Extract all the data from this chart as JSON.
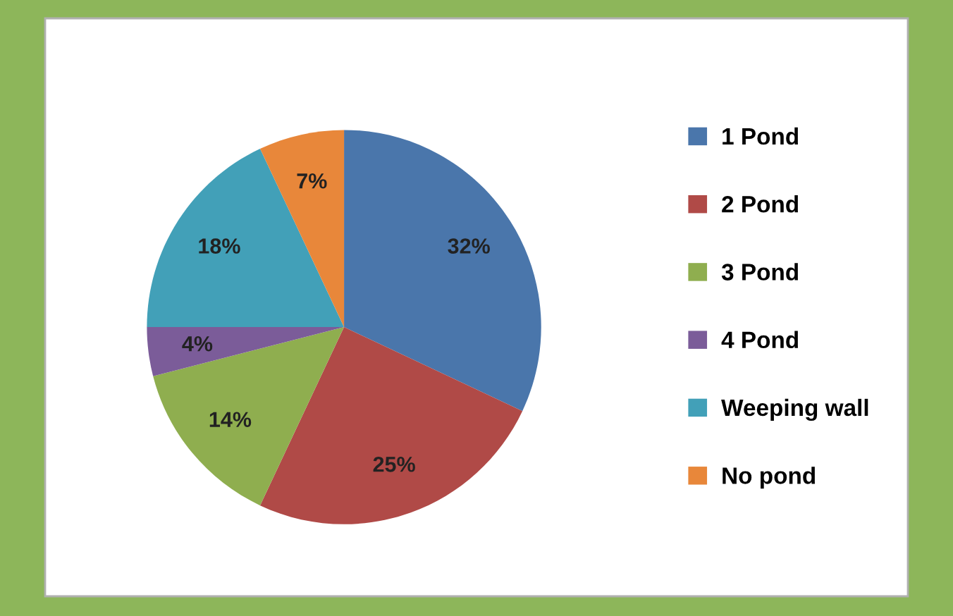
{
  "chart_data": {
    "type": "pie",
    "categories": [
      "1 Pond",
      "2 Pond",
      "3 Pond",
      "4 Pond",
      "Weeping wall",
      "No pond"
    ],
    "values": [
      32,
      25,
      14,
      4,
      18,
      7
    ],
    "colors": [
      "#4a76ab",
      "#b04a47",
      "#8fae4f",
      "#7b5c99",
      "#42a0b8",
      "#e8873a"
    ],
    "value_labels": [
      "32%",
      "25%",
      "14%",
      "4%",
      "18%",
      "7%"
    ],
    "legend": "right"
  }
}
